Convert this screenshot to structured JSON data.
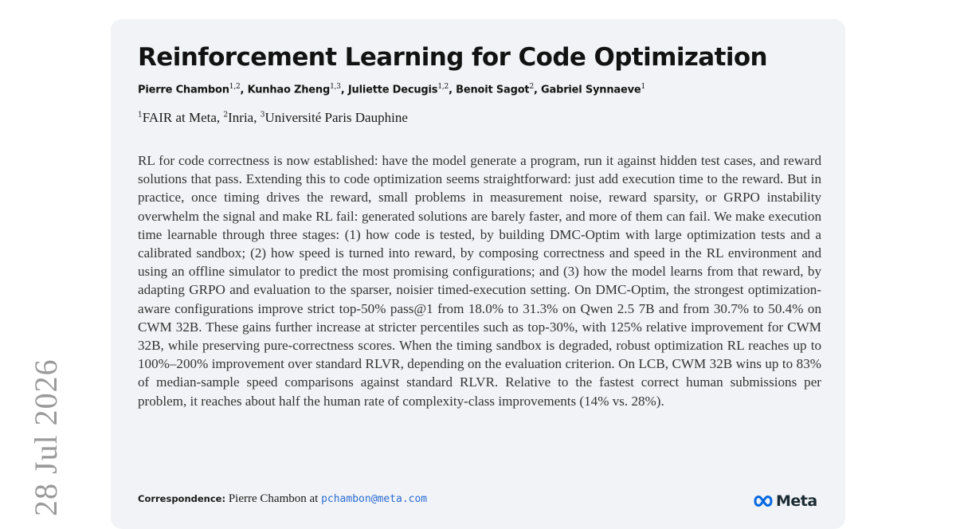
{
  "side_date": "28 Jul 2026",
  "paper": {
    "title": "Reinforcement Learning for Code Optimization",
    "authors": [
      {
        "name": "Pierre Chambon",
        "sup": "1,2",
        "sep": ", "
      },
      {
        "name": "Kunhao Zheng",
        "sup": "1,3",
        "sep": ", "
      },
      {
        "name": "Juliette Decugis",
        "sup": "1,2",
        "sep": ", "
      },
      {
        "name": "Benoit Sagot",
        "sup": "2",
        "sep": ", "
      },
      {
        "name": "Gabriel Synnaeve",
        "sup": "1",
        "sep": ""
      }
    ],
    "affiliations": [
      {
        "sup": "1",
        "name": "FAIR at Meta",
        "sep": ", "
      },
      {
        "sup": "2",
        "name": "Inria",
        "sep": ", "
      },
      {
        "sup": "3",
        "name": "Université Paris Dauphine",
        "sep": ""
      }
    ],
    "abstract": "RL for code correctness is now established: have the model generate a program, run it against hidden test cases, and reward solutions that pass. Extending this to code optimization seems straightforward: just add execution time to the reward. But in practice, once timing drives the reward, small problems in measurement noise, reward sparsity, or GRPO instability overwhelm the signal and make RL fail: generated solutions are barely faster, and more of them can fail. We make execution time learnable through three stages: (1) how code is tested, by building DMC-Optim with large optimization tests and a calibrated sandbox; (2) how speed is turned into reward, by composing correctness and speed in the RL environment and using an offline simulator to predict the most promising configurations; and (3) how the model learns from that reward, by adapting GRPO and evaluation to the sparser, noisier timed-execution setting. On DMC-Optim, the strongest optimization-aware configurations improve strict top-50% pass@1 from 18.0% to 31.3% on Qwen 2.5 7B and from 30.7% to 50.4% on CWM 32B. These gains further increase at stricter percentiles such as top-30%, with 125% relative improvement for CWM 32B, while preserving pure-correctness scores. When the timing sandbox is degraded, robust optimization RL reaches up to 100%–200% improvement over standard RLVR, depending on the evaluation criterion. On LCB, CWM 32B wins up to 83% of median-sample speed comparisons against standard RLVR. Relative to the fastest correct human submissions per problem, it reaches about half the human rate of complexity-class improvements (14% vs. 28%).",
    "correspondence_label": "Correspondence:",
    "correspondence_name": "Pierre Chambon at",
    "correspondence_email": "pchambon@meta.com",
    "logo_text": "Meta"
  },
  "colors": {
    "card_background": "#f1f3f6",
    "email_link": "#2a6cd4",
    "meta_logo_blue": "#0668e1"
  }
}
